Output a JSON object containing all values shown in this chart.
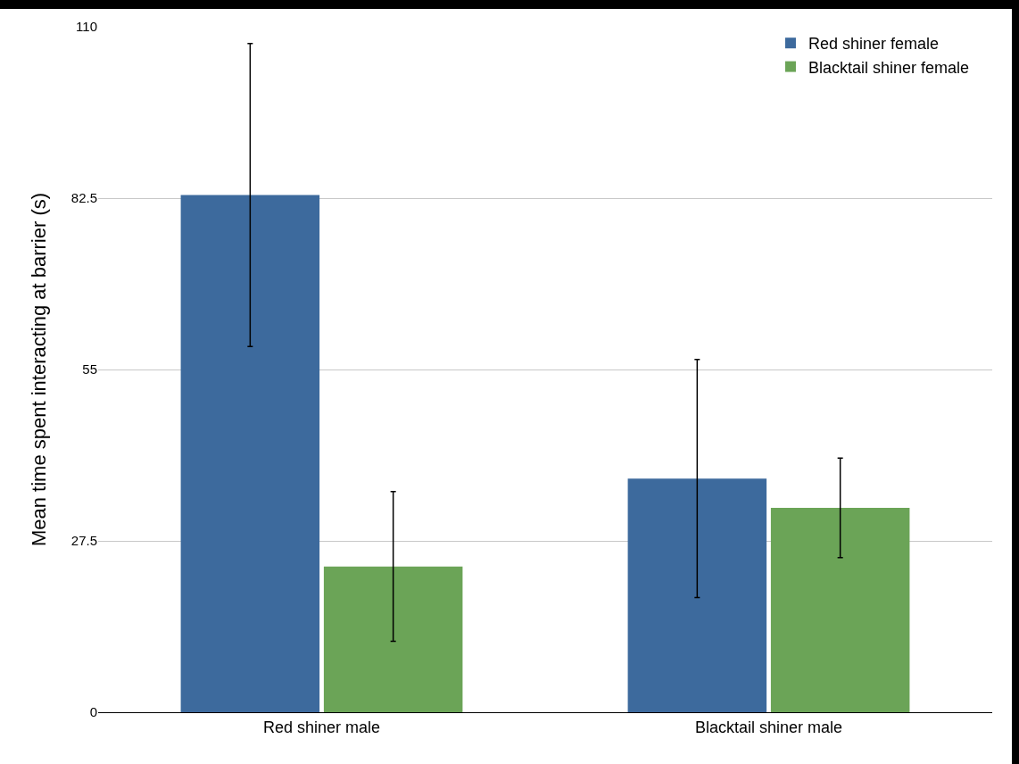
{
  "chart_data": {
    "type": "bar",
    "ylabel": "Mean time spent interacting at barrier (s)",
    "categories": [
      "Red shiner male",
      "Blacktail shiner male"
    ],
    "series": [
      {
        "name": "Red shiner female",
        "color": "#3d6a9d",
        "values": [
          83,
          37.5
        ],
        "errors": [
          24.3,
          19.1
        ]
      },
      {
        "name": "Blacktail shiner female",
        "color": "#6ba457",
        "values": [
          23.4,
          32.8
        ],
        "errors": [
          12,
          8
        ]
      }
    ],
    "ylim": [
      0,
      110
    ],
    "yticks": [
      0,
      27.5,
      55,
      82.5,
      110
    ],
    "grid": "y",
    "legend": "top right"
  }
}
